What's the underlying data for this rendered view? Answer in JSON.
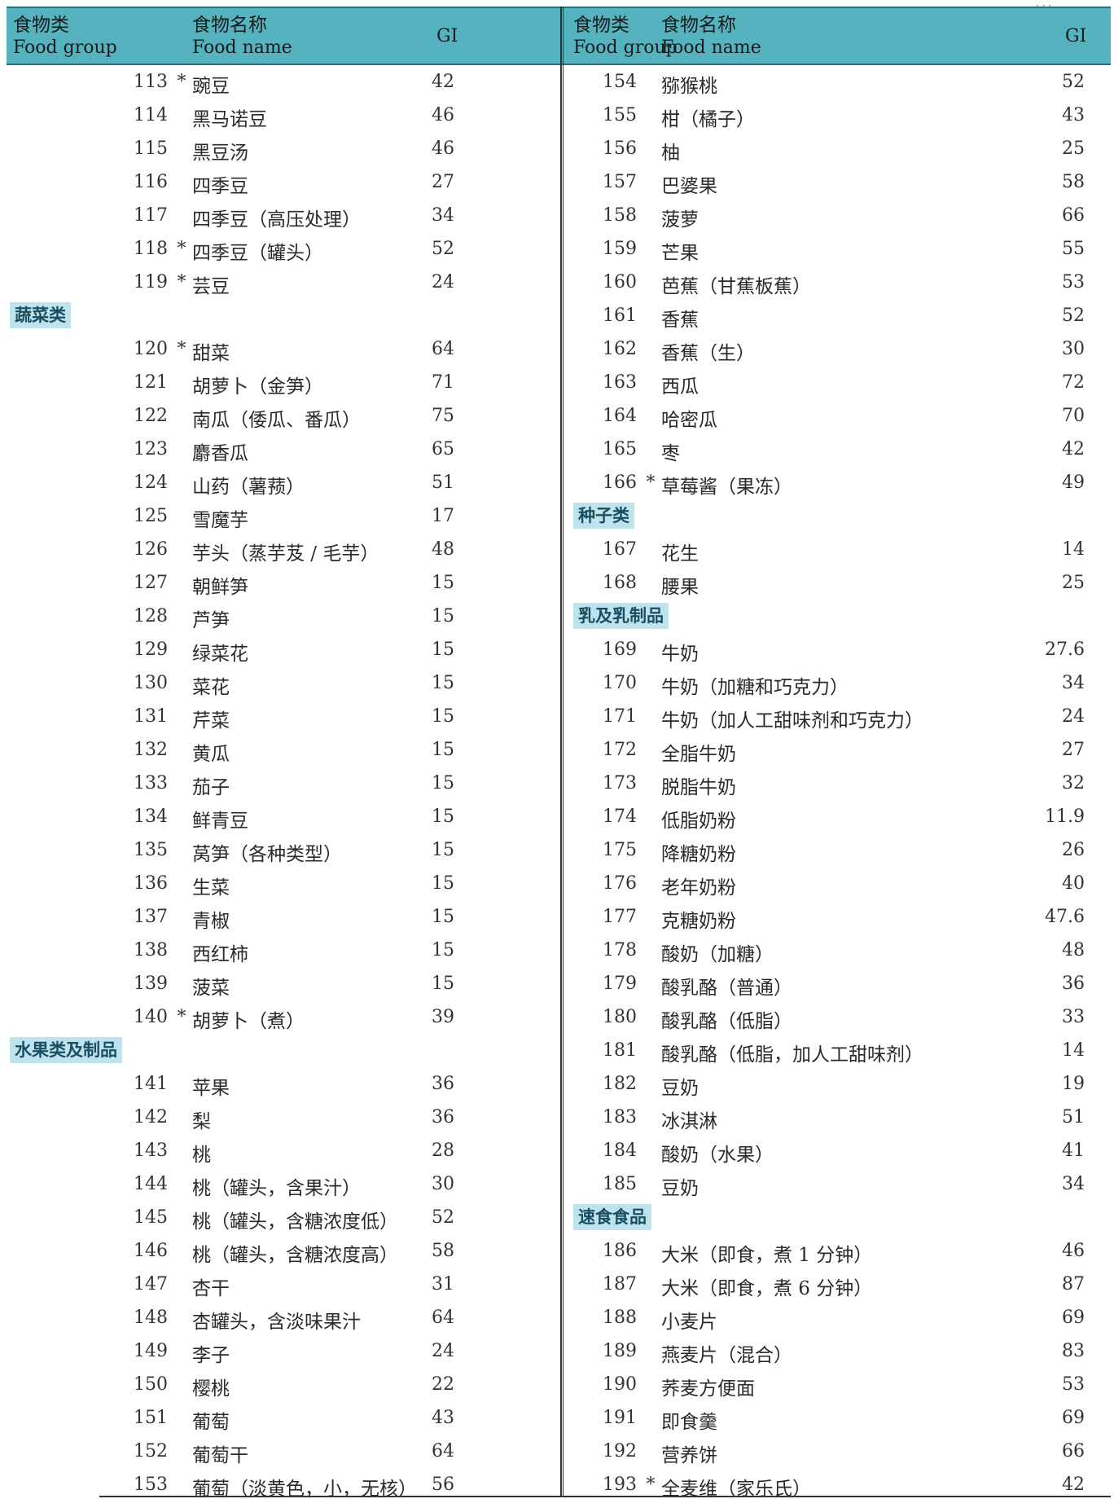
{
  "corner_mark": "· · ·",
  "header": {
    "group_zh": "食物类",
    "group_en": "Food group",
    "name_zh": "食物名称",
    "name_en": "Food name",
    "gi": "GI"
  },
  "left_rows": [
    {
      "num": "113",
      "star": "*",
      "name": "豌豆",
      "gi": "42"
    },
    {
      "num": "114",
      "star": "",
      "name": "黑马诺豆",
      "gi": "46"
    },
    {
      "num": "115",
      "star": "",
      "name": "黑豆汤",
      "gi": "46"
    },
    {
      "num": "116",
      "star": "",
      "name": "四季豆",
      "gi": "27"
    },
    {
      "num": "117",
      "star": "",
      "name": "四季豆（高压处理）",
      "gi": "34"
    },
    {
      "num": "118",
      "star": "*",
      "name": "四季豆（罐头）",
      "gi": "52"
    },
    {
      "num": "119",
      "star": "*",
      "name": "芸豆",
      "gi": "24"
    },
    {
      "category": "蔬菜类"
    },
    {
      "num": "120",
      "star": "*",
      "name": "甜菜",
      "gi": "64"
    },
    {
      "num": "121",
      "star": "",
      "name": "胡萝卜（金笋）",
      "gi": "71"
    },
    {
      "num": "122",
      "star": "",
      "name": "南瓜（倭瓜、番瓜）",
      "gi": "75"
    },
    {
      "num": "123",
      "star": "",
      "name": "麝香瓜",
      "gi": "65"
    },
    {
      "num": "124",
      "star": "",
      "name": "山药（薯蓣）",
      "gi": "51"
    },
    {
      "num": "125",
      "star": "",
      "name": "雪魔芋",
      "gi": "17"
    },
    {
      "num": "126",
      "star": "",
      "name": "芋头（蒸芋芨 / 毛芋）",
      "gi": "48"
    },
    {
      "num": "127",
      "star": "",
      "name": "朝鲜笋",
      "gi": "15"
    },
    {
      "num": "128",
      "star": "",
      "name": "芦笋",
      "gi": "15"
    },
    {
      "num": "129",
      "star": "",
      "name": "绿菜花",
      "gi": "15"
    },
    {
      "num": "130",
      "star": "",
      "name": "菜花",
      "gi": "15"
    },
    {
      "num": "131",
      "star": "",
      "name": "芹菜",
      "gi": "15"
    },
    {
      "num": "132",
      "star": "",
      "name": "黄瓜",
      "gi": "15"
    },
    {
      "num": "133",
      "star": "",
      "name": "茄子",
      "gi": "15"
    },
    {
      "num": "134",
      "star": "",
      "name": "鲜青豆",
      "gi": "15"
    },
    {
      "num": "135",
      "star": "",
      "name": "莴笋（各种类型）",
      "gi": "15"
    },
    {
      "num": "136",
      "star": "",
      "name": "生菜",
      "gi": "15"
    },
    {
      "num": "137",
      "star": "",
      "name": "青椒",
      "gi": "15"
    },
    {
      "num": "138",
      "star": "",
      "name": "西红柿",
      "gi": "15"
    },
    {
      "num": "139",
      "star": "",
      "name": "菠菜",
      "gi": "15"
    },
    {
      "num": "140",
      "star": "*",
      "name": "胡萝卜（煮）",
      "gi": "39"
    },
    {
      "category": "水果类及制品"
    },
    {
      "num": "141",
      "star": "",
      "name": "苹果",
      "gi": "36"
    },
    {
      "num": "142",
      "star": "",
      "name": "梨",
      "gi": "36"
    },
    {
      "num": "143",
      "star": "",
      "name": "桃",
      "gi": "28"
    },
    {
      "num": "144",
      "star": "",
      "name": "桃（罐头，含果汁）",
      "gi": "30"
    },
    {
      "num": "145",
      "star": "",
      "name": "桃（罐头，含糖浓度低）",
      "gi": "52"
    },
    {
      "num": "146",
      "star": "",
      "name": "桃（罐头，含糖浓度高）",
      "gi": "58"
    },
    {
      "num": "147",
      "star": "",
      "name": "杏干",
      "gi": "31"
    },
    {
      "num": "148",
      "star": "",
      "name": "杏罐头，含淡味果汁",
      "gi": "64"
    },
    {
      "num": "149",
      "star": "",
      "name": "李子",
      "gi": "24"
    },
    {
      "num": "150",
      "star": "",
      "name": "樱桃",
      "gi": "22"
    },
    {
      "num": "151",
      "star": "",
      "name": "葡萄",
      "gi": "43"
    },
    {
      "num": "152",
      "star": "",
      "name": "葡萄干",
      "gi": "64"
    },
    {
      "num": "153",
      "star": "",
      "name": "葡萄（淡黄色，小，无核）",
      "gi": "56"
    }
  ],
  "right_rows": [
    {
      "num": "154",
      "star": "",
      "name": "猕猴桃",
      "gi": "52"
    },
    {
      "num": "155",
      "star": "",
      "name": "柑（橘子）",
      "gi": "43"
    },
    {
      "num": "156",
      "star": "",
      "name": "柚",
      "gi": "25"
    },
    {
      "num": "157",
      "star": "",
      "name": "巴婆果",
      "gi": "58"
    },
    {
      "num": "158",
      "star": "",
      "name": "菠萝",
      "gi": "66"
    },
    {
      "num": "159",
      "star": "",
      "name": "芒果",
      "gi": "55"
    },
    {
      "num": "160",
      "star": "",
      "name": "芭蕉（甘蕉板蕉）",
      "gi": "53"
    },
    {
      "num": "161",
      "star": "",
      "name": "香蕉",
      "gi": "52"
    },
    {
      "num": "162",
      "star": "",
      "name": "香蕉（生）",
      "gi": "30"
    },
    {
      "num": "163",
      "star": "",
      "name": "西瓜",
      "gi": "72"
    },
    {
      "num": "164",
      "star": "",
      "name": "哈密瓜",
      "gi": "70"
    },
    {
      "num": "165",
      "star": "",
      "name": "枣",
      "gi": "42"
    },
    {
      "num": "166",
      "star": "*",
      "name": "草莓酱（果冻）",
      "gi": "49"
    },
    {
      "category": "种子类"
    },
    {
      "num": "167",
      "star": "",
      "name": "花生",
      "gi": "14"
    },
    {
      "num": "168",
      "star": "",
      "name": "腰果",
      "gi": "25"
    },
    {
      "category": "乳及乳制品"
    },
    {
      "num": "169",
      "star": "",
      "name": "牛奶",
      "gi": "27.6"
    },
    {
      "num": "170",
      "star": "",
      "name": "牛奶（加糖和巧克力）",
      "gi": "34"
    },
    {
      "num": "171",
      "star": "",
      "name": "牛奶（加人工甜味剂和巧克力）",
      "gi": "24"
    },
    {
      "num": "172",
      "star": "",
      "name": "全脂牛奶",
      "gi": "27"
    },
    {
      "num": "173",
      "star": "",
      "name": "脱脂牛奶",
      "gi": "32"
    },
    {
      "num": "174",
      "star": "",
      "name": "低脂奶粉",
      "gi": "11.9"
    },
    {
      "num": "175",
      "star": "",
      "name": "降糖奶粉",
      "gi": "26"
    },
    {
      "num": "176",
      "star": "",
      "name": "老年奶粉",
      "gi": "40"
    },
    {
      "num": "177",
      "star": "",
      "name": "克糖奶粉",
      "gi": "47.6"
    },
    {
      "num": "178",
      "star": "",
      "name": "酸奶（加糖）",
      "gi": "48"
    },
    {
      "num": "179",
      "star": "",
      "name": "酸乳酪（普通）",
      "gi": "36"
    },
    {
      "num": "180",
      "star": "",
      "name": "酸乳酪（低脂）",
      "gi": "33"
    },
    {
      "num": "181",
      "star": "",
      "name": "酸乳酪（低脂，加人工甜味剂）",
      "gi": "14"
    },
    {
      "num": "182",
      "star": "",
      "name": "豆奶",
      "gi": "19"
    },
    {
      "num": "183",
      "star": "",
      "name": "冰淇淋",
      "gi": "51"
    },
    {
      "num": "184",
      "star": "",
      "name": "酸奶（水果）",
      "gi": "41"
    },
    {
      "num": "185",
      "star": "",
      "name": "豆奶",
      "gi": "34"
    },
    {
      "category": "速食食品"
    },
    {
      "num": "186",
      "star": "",
      "name": "大米（即食，煮 1 分钟）",
      "gi": "46"
    },
    {
      "num": "187",
      "star": "",
      "name": "大米（即食，煮 6 分钟）",
      "gi": "87"
    },
    {
      "num": "188",
      "star": "",
      "name": "小麦片",
      "gi": "69"
    },
    {
      "num": "189",
      "star": "",
      "name": "燕麦片（混合）",
      "gi": "83"
    },
    {
      "num": "190",
      "star": "",
      "name": "荞麦方便面",
      "gi": "53"
    },
    {
      "num": "191",
      "star": "",
      "name": "即食羹",
      "gi": "69"
    },
    {
      "num": "192",
      "star": "",
      "name": "营养饼",
      "gi": "66"
    },
    {
      "num": "193",
      "star": "*",
      "name": "全麦维（家乐氏）",
      "gi": "42"
    }
  ]
}
